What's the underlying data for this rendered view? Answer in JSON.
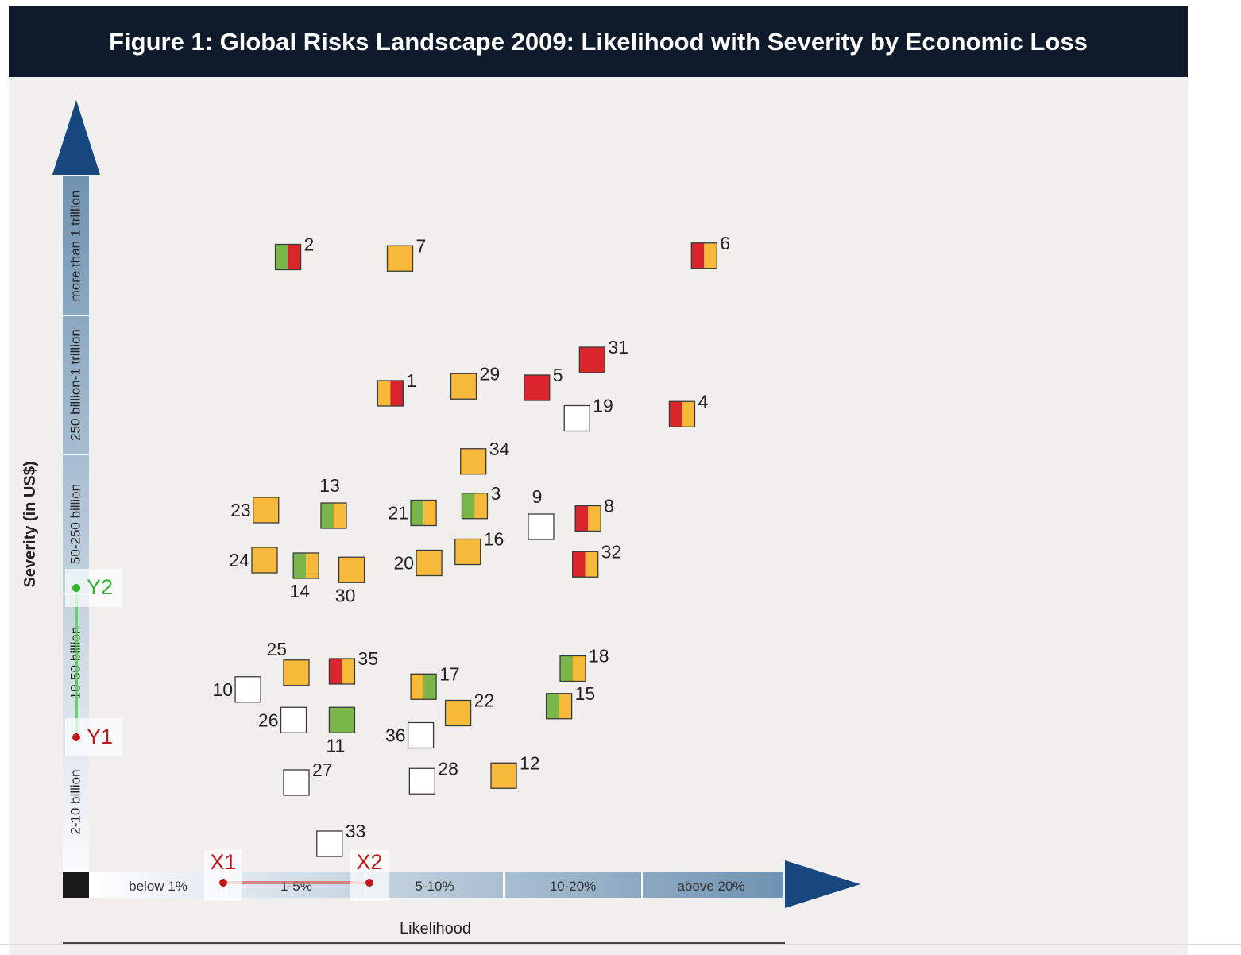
{
  "chart_data": {
    "type": "scatter",
    "title": "Figure 1: Global Risks Landscape 2009: Likelihood with Severity by Economic Loss",
    "xlabel": "Likelihood",
    "ylabel": "Severity (in US$)",
    "x_categories": [
      "below 1%",
      "1-5%",
      "5-10%",
      "10-20%",
      "above 20%"
    ],
    "y_categories": [
      "2-10 billion",
      "10-50 billion",
      "50-250 billion",
      "250 billion-1 trillion",
      "more than 1 trillion"
    ],
    "x_range": [
      0,
      5
    ],
    "y_range": [
      0,
      5
    ],
    "colors": {
      "green": "#7ab648",
      "red": "#d9252b",
      "orange": "#f7b93a",
      "white": "#ffffff",
      "title_bg": "#0f1a2b",
      "arrow": "#16477e",
      "background": "#f0efee"
    },
    "points": [
      {
        "label": "1",
        "x": 2.18,
        "y": 3.44,
        "colors": [
          "orange",
          "red"
        ],
        "label_pos": "right"
      },
      {
        "label": "2",
        "x": 1.44,
        "y": 4.42,
        "colors": [
          "green",
          "red"
        ],
        "label_pos": "right"
      },
      {
        "label": "3",
        "x": 2.79,
        "y": 2.63,
        "colors": [
          "green",
          "orange"
        ],
        "label_pos": "right"
      },
      {
        "label": "4",
        "x": 4.29,
        "y": 3.29,
        "colors": [
          "red",
          "orange"
        ],
        "label_pos": "right"
      },
      {
        "label": "5",
        "x": 3.24,
        "y": 3.48,
        "colors": [
          "red"
        ],
        "label_pos": "right"
      },
      {
        "label": "6",
        "x": 4.45,
        "y": 4.43,
        "colors": [
          "red",
          "orange"
        ],
        "label_pos": "right"
      },
      {
        "label": "7",
        "x": 2.25,
        "y": 4.41,
        "colors": [
          "orange"
        ],
        "label_pos": "right"
      },
      {
        "label": "8",
        "x": 3.61,
        "y": 2.54,
        "colors": [
          "red",
          "orange"
        ],
        "label_pos": "right"
      },
      {
        "label": "9",
        "x": 3.27,
        "y": 2.48,
        "colors": [
          "white"
        ],
        "label_pos": "top"
      },
      {
        "label": "10",
        "x": 1.15,
        "y": 1.31,
        "colors": [
          "white"
        ],
        "label_pos": "left"
      },
      {
        "label": "11",
        "x": 1.83,
        "y": 1.09,
        "colors": [
          "green"
        ],
        "label_pos": "bottom"
      },
      {
        "label": "12",
        "x": 3.0,
        "y": 0.69,
        "colors": [
          "orange"
        ],
        "label_pos": "right"
      },
      {
        "label": "13",
        "x": 1.77,
        "y": 2.56,
        "colors": [
          "green",
          "orange"
        ],
        "label_pos": "top"
      },
      {
        "label": "14",
        "x": 1.57,
        "y": 2.2,
        "colors": [
          "green",
          "orange"
        ],
        "label_pos": "bottom"
      },
      {
        "label": "15",
        "x": 3.4,
        "y": 1.19,
        "colors": [
          "green",
          "orange"
        ],
        "label_pos": "right"
      },
      {
        "label": "16",
        "x": 2.74,
        "y": 2.3,
        "colors": [
          "orange"
        ],
        "label_pos": "right"
      },
      {
        "label": "17",
        "x": 2.42,
        "y": 1.33,
        "colors": [
          "orange",
          "green"
        ],
        "label_pos": "right"
      },
      {
        "label": "18",
        "x": 3.5,
        "y": 1.46,
        "colors": [
          "green",
          "orange"
        ],
        "label_pos": "right"
      },
      {
        "label": "19",
        "x": 3.53,
        "y": 3.26,
        "colors": [
          "white"
        ],
        "label_pos": "right"
      },
      {
        "label": "20",
        "x": 2.46,
        "y": 2.22,
        "colors": [
          "orange"
        ],
        "label_pos": "left"
      },
      {
        "label": "21",
        "x": 2.42,
        "y": 2.58,
        "colors": [
          "green",
          "orange"
        ],
        "label_pos": "left"
      },
      {
        "label": "22",
        "x": 2.67,
        "y": 1.14,
        "colors": [
          "orange"
        ],
        "label_pos": "right"
      },
      {
        "label": "23",
        "x": 1.28,
        "y": 2.6,
        "colors": [
          "orange"
        ],
        "label_pos": "left"
      },
      {
        "label": "24",
        "x": 1.27,
        "y": 2.24,
        "colors": [
          "orange"
        ],
        "label_pos": "left"
      },
      {
        "label": "25",
        "x": 1.5,
        "y": 1.43,
        "colors": [
          "orange"
        ],
        "label_pos": "top-left"
      },
      {
        "label": "26",
        "x": 1.48,
        "y": 1.09,
        "colors": [
          "white"
        ],
        "label_pos": "left"
      },
      {
        "label": "27",
        "x": 1.5,
        "y": 0.64,
        "colors": [
          "white"
        ],
        "label_pos": "right"
      },
      {
        "label": "28",
        "x": 2.41,
        "y": 0.65,
        "colors": [
          "white"
        ],
        "label_pos": "right"
      },
      {
        "label": "29",
        "x": 2.71,
        "y": 3.49,
        "colors": [
          "orange"
        ],
        "label_pos": "right"
      },
      {
        "label": "30",
        "x": 1.9,
        "y": 2.17,
        "colors": [
          "orange"
        ],
        "label_pos": "bottom"
      },
      {
        "label": "31",
        "x": 3.64,
        "y": 3.68,
        "colors": [
          "red"
        ],
        "label_pos": "right"
      },
      {
        "label": "32",
        "x": 3.59,
        "y": 2.21,
        "colors": [
          "red",
          "orange"
        ],
        "label_pos": "right"
      },
      {
        "label": "33",
        "x": 1.74,
        "y": 0.2,
        "colors": [
          "white"
        ],
        "label_pos": "right"
      },
      {
        "label": "34",
        "x": 2.78,
        "y": 2.95,
        "colors": [
          "orange"
        ],
        "label_pos": "right"
      },
      {
        "label": "35",
        "x": 1.83,
        "y": 1.44,
        "colors": [
          "red",
          "orange"
        ],
        "label_pos": "right"
      },
      {
        "label": "36",
        "x": 2.4,
        "y": 0.98,
        "colors": [
          "white"
        ],
        "label_pos": "left"
      }
    ],
    "annotations": {
      "X1": {
        "label": "X1",
        "x": 1.0
      },
      "X2": {
        "label": "X2",
        "x": 2.0
      },
      "Y1": {
        "label": "Y1",
        "y": 1.0
      },
      "Y2": {
        "label": "Y2",
        "y": 2.0
      }
    }
  }
}
